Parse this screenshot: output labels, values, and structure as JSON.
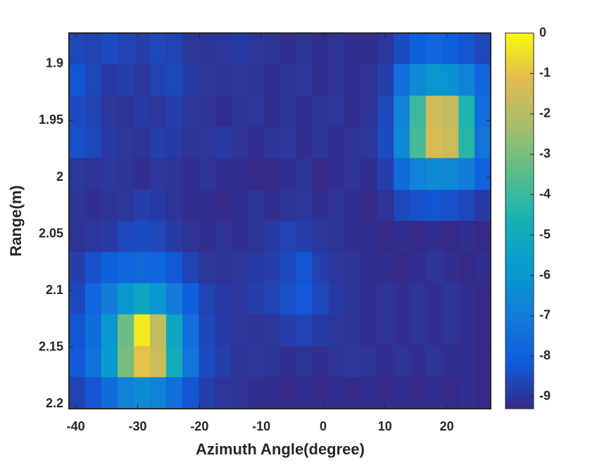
{
  "chart_data": {
    "type": "heatmap",
    "xlabel": "Azimuth Angle(degree)",
    "ylabel": "Range(m)",
    "x": [
      -39.8,
      -37.2,
      -34.6,
      -31.9,
      -29.3,
      -26.7,
      -24.1,
      -21.4,
      -18.8,
      -16.2,
      -13.6,
      -10.9,
      -8.3,
      -5.7,
      -3.1,
      -0.4,
      2.2,
      4.8,
      7.4,
      10.1,
      12.7,
      15.3,
      17.9,
      20.6,
      23.2,
      25.8
    ],
    "y": [
      1.886,
      1.914,
      1.942,
      1.969,
      1.997,
      2.025,
      2.052,
      2.08,
      2.107,
      2.135,
      2.163,
      2.19
    ],
    "z": [
      [
        -8.6,
        -8.7,
        -8.5,
        -8.7,
        -8.8,
        -8.6,
        -8.7,
        -9,
        -9.1,
        -9,
        -8.9,
        -9,
        -9.1,
        -9.2,
        -9.1,
        -9.2,
        -9.1,
        -9.2,
        -9.2,
        -9,
        -8.5,
        -8,
        -7.8,
        -8,
        -8.3,
        -8.6
      ],
      [
        -8.3,
        -8.6,
        -8.9,
        -8.8,
        -9,
        -8.7,
        -8.6,
        -8.9,
        -9,
        -9.1,
        -9,
        -9.1,
        -9.2,
        -9.1,
        -9,
        -9.2,
        -9.1,
        -9.2,
        -9.1,
        -8.8,
        -7.5,
        -6.5,
        -6,
        -6.2,
        -6.8,
        -7.8
      ],
      [
        -8.5,
        -8.7,
        -9,
        -9.1,
        -8.9,
        -9,
        -8.8,
        -9,
        -9.1,
        -9.2,
        -9.1,
        -9,
        -9.2,
        -9.1,
        -9.2,
        -9.1,
        -9,
        -9.2,
        -9.1,
        -8.6,
        -6.8,
        -4,
        -1.5,
        -1.8,
        -4.5,
        -7.5
      ],
      [
        -8.4,
        -8.6,
        -8.9,
        -9,
        -9.1,
        -8.8,
        -8.9,
        -9.1,
        -9,
        -8.9,
        -9.1,
        -9.2,
        -9.1,
        -9,
        -9.2,
        -9.1,
        -9.2,
        -9.1,
        -9,
        -8.5,
        -6.6,
        -3.8,
        -1.3,
        -1.6,
        -4.3,
        -7.3
      ],
      [
        -9,
        -9.1,
        -9,
        -9.1,
        -9.2,
        -9,
        -9.1,
        -9.2,
        -9.1,
        -9.2,
        -9.2,
        -9.3,
        -9.3,
        -9.2,
        -9.1,
        -9.3,
        -9.2,
        -9.1,
        -9.2,
        -8.8,
        -7.6,
        -6.8,
        -6.5,
        -6.6,
        -7,
        -7.9
      ],
      [
        -9.1,
        -9.2,
        -9.1,
        -9,
        -8.8,
        -8.9,
        -9.1,
        -9.2,
        -9.2,
        -9.3,
        -9.2,
        -9.1,
        -9.2,
        -9.1,
        -9,
        -9.2,
        -9.1,
        -9.2,
        -9.3,
        -9.1,
        -8.6,
        -8.4,
        -8.3,
        -8.4,
        -8.6,
        -8.9
      ],
      [
        -9.1,
        -9,
        -8.9,
        -8.6,
        -8.5,
        -8.6,
        -8.9,
        -9.1,
        -9.2,
        -9.1,
        -9.2,
        -9.1,
        -8.9,
        -8.7,
        -8.8,
        -9,
        -9.1,
        -9.2,
        -9.2,
        -9.3,
        -9.2,
        -9.3,
        -9.2,
        -9.3,
        -9.2,
        -9.3
      ],
      [
        -8.8,
        -8.4,
        -8,
        -7.8,
        -7.7,
        -7.8,
        -8.2,
        -8.7,
        -9,
        -9.1,
        -9,
        -8.9,
        -8.8,
        -8.5,
        -8.3,
        -8.8,
        -9,
        -9.1,
        -9.2,
        -9.2,
        -9.3,
        -9.2,
        -9.1,
        -9.2,
        -9.3,
        -9.2
      ],
      [
        -8.6,
        -7.8,
        -7,
        -6,
        -5.2,
        -6,
        -7,
        -8,
        -8.7,
        -8.9,
        -9,
        -8.8,
        -8.7,
        -8.4,
        -8.2,
        -8.6,
        -8.9,
        -9.1,
        -9.2,
        -9.1,
        -9.2,
        -9.1,
        -9.2,
        -9.1,
        -9.2,
        -9.3
      ],
      [
        -8.3,
        -7.6,
        -6,
        -3.2,
        -0.3,
        -1.8,
        -5.2,
        -7.5,
        -8.6,
        -8.9,
        -9,
        -9.1,
        -9,
        -8.8,
        -8.7,
        -8.9,
        -9,
        -9.1,
        -9.2,
        -9.1,
        -9.2,
        -9.1,
        -9.2,
        -9.1,
        -9.2,
        -9.3
      ],
      [
        -8.2,
        -7.4,
        -5.8,
        -3,
        -1,
        -1.6,
        -5,
        -7.3,
        -8.5,
        -8.8,
        -9.1,
        -9,
        -9.1,
        -9.2,
        -9.1,
        -9.2,
        -9.1,
        -9,
        -9.1,
        -9.2,
        -9.1,
        -9.2,
        -9.1,
        -9.2,
        -9.2,
        -9.3
      ],
      [
        -8.7,
        -8.3,
        -7.6,
        -6.8,
        -6.4,
        -6.8,
        -7.5,
        -8.3,
        -8.8,
        -9,
        -9.1,
        -9.2,
        -9.2,
        -9.3,
        -9.2,
        -9.3,
        -9.2,
        -9.3,
        -9.2,
        -9.3,
        -9.2,
        -9.3,
        -9.2,
        -9.3,
        -9.2,
        -9.3
      ]
    ],
    "xlim": [
      -41.1,
      27.1
    ],
    "ylim": [
      1.8727,
      2.2043
    ],
    "ydir": "reverse",
    "xticks": [
      -40,
      -30,
      -20,
      -10,
      0,
      10,
      20
    ],
    "yticks": [
      1.9,
      1.95,
      2,
      2.05,
      2.1,
      2.15,
      2.2
    ],
    "clim": [
      -9.3,
      0
    ],
    "cticks": [
      0,
      -1,
      -2,
      -3,
      -4,
      -5,
      -6,
      -7,
      -8,
      -9
    ],
    "colormap": [
      "#352a87",
      "#0f5cdd",
      "#127dd8",
      "#079ccf",
      "#15b1b4",
      "#59bd8c",
      "#a5be6b",
      "#e1b952",
      "#f9fb0e"
    ]
  }
}
